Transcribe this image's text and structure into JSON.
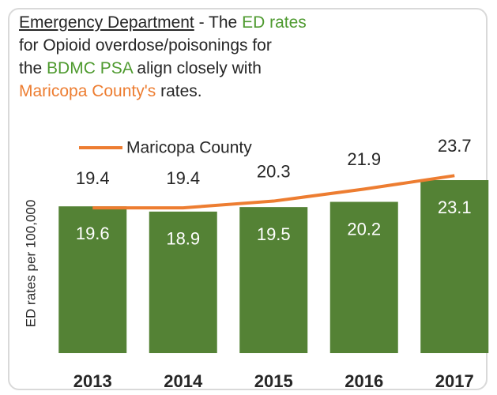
{
  "chart_data": {
    "type": "bar_line",
    "title_lines": [
      [
        {
          "text": "Emergency Department",
          "color": "#262626",
          "underline": true
        },
        {
          "text": " - The ",
          "color": "#262626"
        },
        {
          "text": "ED rates",
          "color": "#4e9a2f"
        }
      ],
      [
        {
          "text": "for Opioid overdose/poisonings for",
          "color": "#262626"
        }
      ],
      [
        {
          "text": "the ",
          "color": "#262626"
        },
        {
          "text": "BDMC PSA",
          "color": "#4e9a2f"
        },
        {
          "text": " align closely with",
          "color": "#262626"
        }
      ],
      [
        {
          "text": "Maricopa County's",
          "color": "#ed7d31"
        },
        {
          "text": " rates.",
          "color": "#262626"
        }
      ]
    ],
    "y_label": "ED rates per 100,000",
    "categories": [
      "2013",
      "2014",
      "2015",
      "2016",
      "2017"
    ],
    "series": [
      {
        "name": null,
        "kind": "bar",
        "color": "#548235",
        "values": [
          19.6,
          18.9,
          19.5,
          20.2,
          23.1
        ]
      },
      {
        "name": "Maricopa County",
        "kind": "line",
        "color": "#ed7d31",
        "values": [
          19.4,
          19.4,
          20.3,
          21.9,
          23.7
        ]
      }
    ],
    "ylim": [
      0,
      25
    ],
    "legend": "top"
  }
}
